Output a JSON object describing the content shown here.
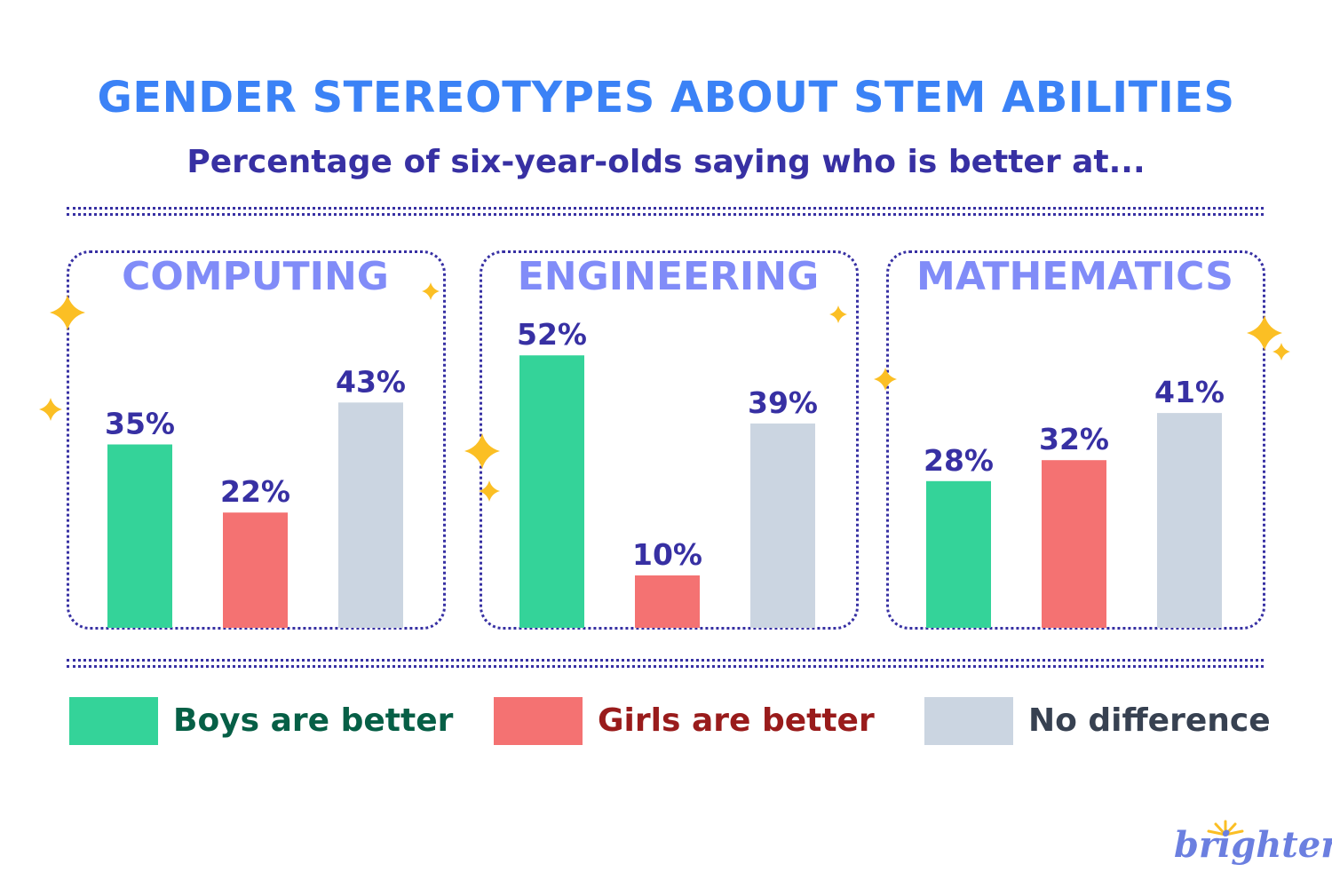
{
  "header": {
    "title": "GENDER STEREOTYPES ABOUT STEM ABILITIES",
    "subtitle": "Percentage of six-year-olds saying who is better at..."
  },
  "chart_data": {
    "type": "bar",
    "title": "GENDER STEREOTYPES ABOUT STEM ABILITIES",
    "subtitle": "Percentage of six-year-olds saying who is better at...",
    "panels": [
      {
        "title": "COMPUTING",
        "values": [
          35,
          22,
          43
        ],
        "labels": [
          "35%",
          "22%",
          "43%"
        ]
      },
      {
        "title": "ENGINEERING",
        "values": [
          52,
          10,
          39
        ],
        "labels": [
          "52%",
          "10%",
          "39%"
        ]
      },
      {
        "title": "MATHEMATICS",
        "values": [
          28,
          32,
          41
        ],
        "labels": [
          "28%",
          "32%",
          "41%"
        ]
      }
    ],
    "series": [
      {
        "name": "Boys are better",
        "color": "#34d399",
        "label_color": "#065f46"
      },
      {
        "name": "Girls are better",
        "color": "#f47272",
        "label_color": "#991b1b"
      },
      {
        "name": "No difference",
        "color": "#cbd5e1",
        "label_color": "#374151"
      }
    ],
    "ylim": [
      0,
      55
    ],
    "grid": false,
    "legend": "bottom",
    "value_label_color": "#3730a3"
  },
  "logo": {
    "text": "brighterly"
  }
}
